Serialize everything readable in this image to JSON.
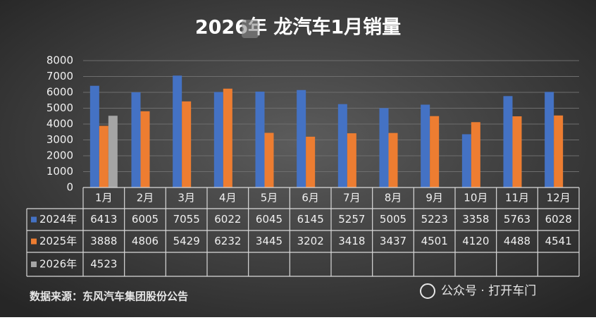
{
  "chart_data": {
    "type": "bar",
    "title": "2026年 龙汽车1月销量",
    "categories": [
      "1月",
      "2月",
      "3月",
      "4月",
      "5月",
      "6月",
      "7月",
      "8月",
      "9月",
      "10月",
      "11月",
      "12月"
    ],
    "series": [
      {
        "name": "2024年",
        "color": "#4472c4",
        "values": [
          6413,
          6005,
          7055,
          6022,
          6045,
          6145,
          5257,
          5005,
          5223,
          3358,
          5763,
          6028
        ]
      },
      {
        "name": "2025年",
        "color": "#ed7d31",
        "values": [
          3888,
          4806,
          5429,
          6232,
          3445,
          3202,
          3418,
          3437,
          4501,
          4120,
          4488,
          4541
        ]
      },
      {
        "name": "2026年",
        "color": "#a5a5a5",
        "values": [
          4523,
          null,
          null,
          null,
          null,
          null,
          null,
          null,
          null,
          null,
          null,
          null
        ]
      }
    ],
    "ylim": [
      0,
      8000
    ],
    "yticks": [
      0,
      1000,
      2000,
      3000,
      4000,
      5000,
      6000,
      7000,
      8000
    ],
    "grid": true,
    "source": "数据来源：东风汽车集团股份公告",
    "watermark": "公众号 · 打开车门"
  }
}
